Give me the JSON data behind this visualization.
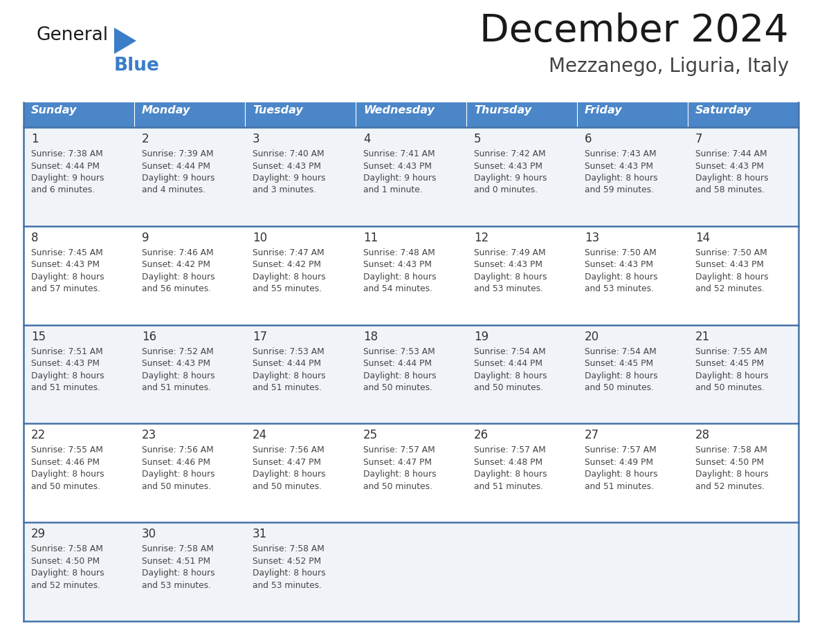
{
  "title": "December 2024",
  "subtitle": "Mezzanego, Liguria, Italy",
  "days_of_week": [
    "Sunday",
    "Monday",
    "Tuesday",
    "Wednesday",
    "Thursday",
    "Friday",
    "Saturday"
  ],
  "header_bg": "#4a86c8",
  "header_text": "#ffffff",
  "row_bg_light": "#f0f4f8",
  "row_bg_white": "#ffffff",
  "border_color": "#4472a8",
  "title_color": "#1a1a1a",
  "subtitle_color": "#444444",
  "day_number_color": "#333333",
  "cell_text_color": "#444444",
  "logo_general_color": "#1a1a1a",
  "logo_blue_color": "#3a7dc9",
  "logo_triangle_color": "#3a7dc9",
  "calendar_data": [
    [
      {
        "day": 1,
        "sunrise": "7:38 AM",
        "sunset": "4:44 PM",
        "daylight_h": "9 hours",
        "daylight_m": "and 6 minutes."
      },
      {
        "day": 2,
        "sunrise": "7:39 AM",
        "sunset": "4:44 PM",
        "daylight_h": "9 hours",
        "daylight_m": "and 4 minutes."
      },
      {
        "day": 3,
        "sunrise": "7:40 AM",
        "sunset": "4:43 PM",
        "daylight_h": "9 hours",
        "daylight_m": "and 3 minutes."
      },
      {
        "day": 4,
        "sunrise": "7:41 AM",
        "sunset": "4:43 PM",
        "daylight_h": "9 hours",
        "daylight_m": "and 1 minute."
      },
      {
        "day": 5,
        "sunrise": "7:42 AM",
        "sunset": "4:43 PM",
        "daylight_h": "9 hours",
        "daylight_m": "and 0 minutes."
      },
      {
        "day": 6,
        "sunrise": "7:43 AM",
        "sunset": "4:43 PM",
        "daylight_h": "8 hours",
        "daylight_m": "and 59 minutes."
      },
      {
        "day": 7,
        "sunrise": "7:44 AM",
        "sunset": "4:43 PM",
        "daylight_h": "8 hours",
        "daylight_m": "and 58 minutes."
      }
    ],
    [
      {
        "day": 8,
        "sunrise": "7:45 AM",
        "sunset": "4:43 PM",
        "daylight_h": "8 hours",
        "daylight_m": "and 57 minutes."
      },
      {
        "day": 9,
        "sunrise": "7:46 AM",
        "sunset": "4:42 PM",
        "daylight_h": "8 hours",
        "daylight_m": "and 56 minutes."
      },
      {
        "day": 10,
        "sunrise": "7:47 AM",
        "sunset": "4:42 PM",
        "daylight_h": "8 hours",
        "daylight_m": "and 55 minutes."
      },
      {
        "day": 11,
        "sunrise": "7:48 AM",
        "sunset": "4:43 PM",
        "daylight_h": "8 hours",
        "daylight_m": "and 54 minutes."
      },
      {
        "day": 12,
        "sunrise": "7:49 AM",
        "sunset": "4:43 PM",
        "daylight_h": "8 hours",
        "daylight_m": "and 53 minutes."
      },
      {
        "day": 13,
        "sunrise": "7:50 AM",
        "sunset": "4:43 PM",
        "daylight_h": "8 hours",
        "daylight_m": "and 53 minutes."
      },
      {
        "day": 14,
        "sunrise": "7:50 AM",
        "sunset": "4:43 PM",
        "daylight_h": "8 hours",
        "daylight_m": "and 52 minutes."
      }
    ],
    [
      {
        "day": 15,
        "sunrise": "7:51 AM",
        "sunset": "4:43 PM",
        "daylight_h": "8 hours",
        "daylight_m": "and 51 minutes."
      },
      {
        "day": 16,
        "sunrise": "7:52 AM",
        "sunset": "4:43 PM",
        "daylight_h": "8 hours",
        "daylight_m": "and 51 minutes."
      },
      {
        "day": 17,
        "sunrise": "7:53 AM",
        "sunset": "4:44 PM",
        "daylight_h": "8 hours",
        "daylight_m": "and 51 minutes."
      },
      {
        "day": 18,
        "sunrise": "7:53 AM",
        "sunset": "4:44 PM",
        "daylight_h": "8 hours",
        "daylight_m": "and 50 minutes."
      },
      {
        "day": 19,
        "sunrise": "7:54 AM",
        "sunset": "4:44 PM",
        "daylight_h": "8 hours",
        "daylight_m": "and 50 minutes."
      },
      {
        "day": 20,
        "sunrise": "7:54 AM",
        "sunset": "4:45 PM",
        "daylight_h": "8 hours",
        "daylight_m": "and 50 minutes."
      },
      {
        "day": 21,
        "sunrise": "7:55 AM",
        "sunset": "4:45 PM",
        "daylight_h": "8 hours",
        "daylight_m": "and 50 minutes."
      }
    ],
    [
      {
        "day": 22,
        "sunrise": "7:55 AM",
        "sunset": "4:46 PM",
        "daylight_h": "8 hours",
        "daylight_m": "and 50 minutes."
      },
      {
        "day": 23,
        "sunrise": "7:56 AM",
        "sunset": "4:46 PM",
        "daylight_h": "8 hours",
        "daylight_m": "and 50 minutes."
      },
      {
        "day": 24,
        "sunrise": "7:56 AM",
        "sunset": "4:47 PM",
        "daylight_h": "8 hours",
        "daylight_m": "and 50 minutes."
      },
      {
        "day": 25,
        "sunrise": "7:57 AM",
        "sunset": "4:47 PM",
        "daylight_h": "8 hours",
        "daylight_m": "and 50 minutes."
      },
      {
        "day": 26,
        "sunrise": "7:57 AM",
        "sunset": "4:48 PM",
        "daylight_h": "8 hours",
        "daylight_m": "and 51 minutes."
      },
      {
        "day": 27,
        "sunrise": "7:57 AM",
        "sunset": "4:49 PM",
        "daylight_h": "8 hours",
        "daylight_m": "and 51 minutes."
      },
      {
        "day": 28,
        "sunrise": "7:58 AM",
        "sunset": "4:50 PM",
        "daylight_h": "8 hours",
        "daylight_m": "and 52 minutes."
      }
    ],
    [
      {
        "day": 29,
        "sunrise": "7:58 AM",
        "sunset": "4:50 PM",
        "daylight_h": "8 hours",
        "daylight_m": "and 52 minutes."
      },
      {
        "day": 30,
        "sunrise": "7:58 AM",
        "sunset": "4:51 PM",
        "daylight_h": "8 hours",
        "daylight_m": "and 53 minutes."
      },
      {
        "day": 31,
        "sunrise": "7:58 AM",
        "sunset": "4:52 PM",
        "daylight_h": "8 hours",
        "daylight_m": "and 53 minutes."
      },
      null,
      null,
      null,
      null
    ]
  ]
}
